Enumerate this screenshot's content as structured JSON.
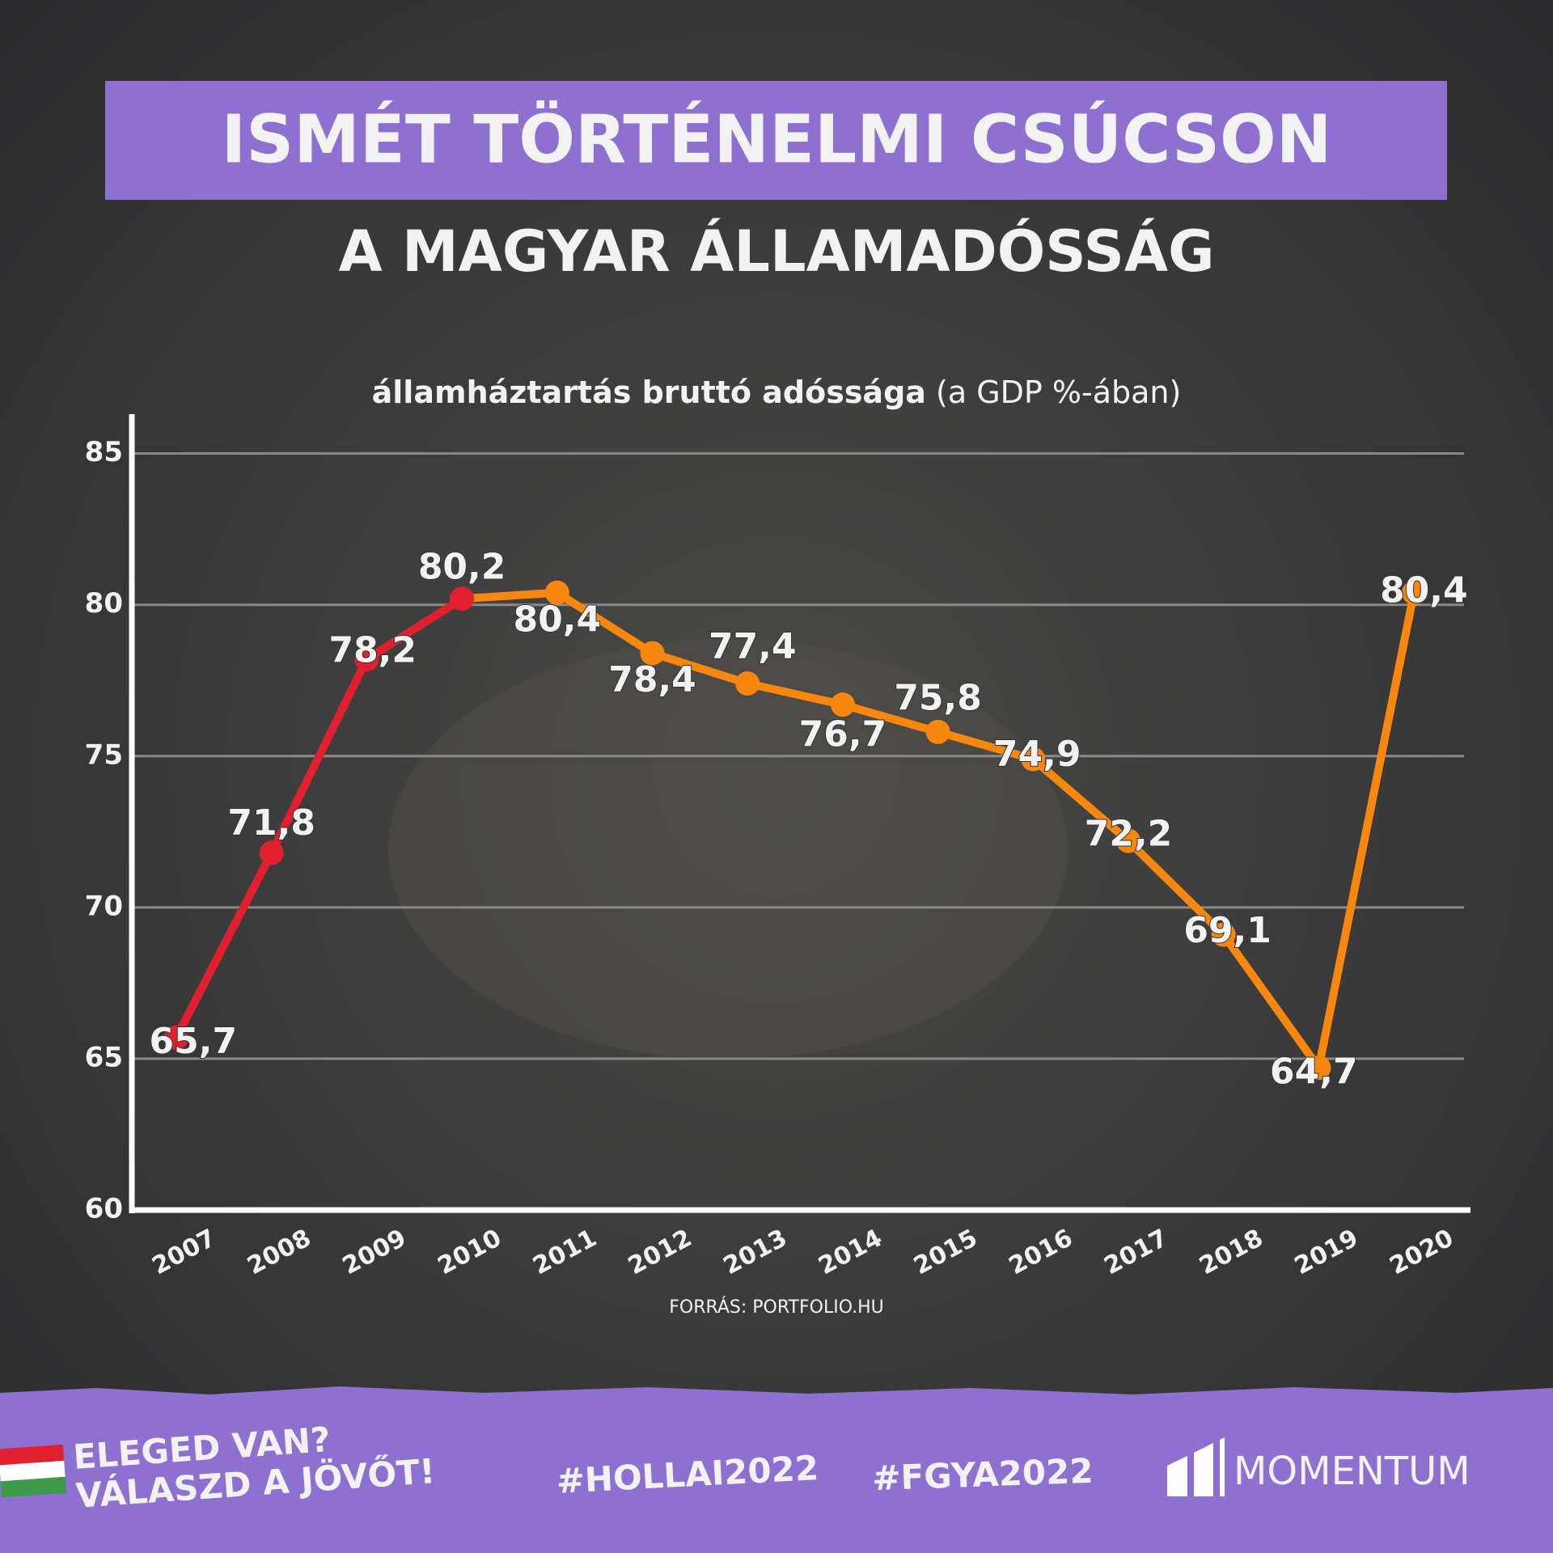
{
  "chart_data": {
    "type": "line",
    "title": "ISMÉT TÖRTÉNELMI CSÚCSON",
    "subtitle": "A MAGYAR ÁLLAMADÓSSÁG",
    "axis_title": "államháztartás bruttó adóssága",
    "axis_unit": "(a GDP %-ában)",
    "source": "FORRÁS: PORTFOLIO.HU",
    "categories": [
      "2007",
      "2008",
      "2009",
      "2010",
      "2011",
      "2012",
      "2013",
      "2014",
      "2015",
      "2016",
      "2017",
      "2018",
      "2019",
      "2020"
    ],
    "series": [
      {
        "color": "#e1202f",
        "values": [
          65.7,
          71.8,
          78.2,
          80.2,
          null,
          null,
          null,
          null,
          null,
          null,
          null,
          null,
          null,
          null
        ],
        "value_labels": [
          "65,7",
          "71,8",
          "78,2",
          "80,2",
          null,
          null,
          null,
          null,
          null,
          null,
          null,
          null,
          null,
          null
        ]
      },
      {
        "color": "#f7870f",
        "values": [
          null,
          null,
          null,
          null,
          80.4,
          78.4,
          77.4,
          76.7,
          75.8,
          74.9,
          72.2,
          69.1,
          64.7,
          80.4
        ],
        "value_labels": [
          null,
          null,
          null,
          null,
          "80,4",
          "78,4",
          "77,4",
          "76,7",
          "75,8",
          "74,9",
          "72,2",
          "69,1",
          "64,7",
          "80,4"
        ]
      }
    ],
    "ylim": [
      60,
      86.3
    ],
    "yticks": [
      60,
      65,
      70,
      75,
      80,
      85
    ],
    "grid": true
  },
  "footer": {
    "slogan_1": "ELEGED VAN?",
    "slogan_2": "VÁLASZD A JÖVŐT!",
    "hashtag_1": "#HOLLAI2022",
    "hashtag_2": "#FGYA2022",
    "logo": "MOMENTUM"
  }
}
